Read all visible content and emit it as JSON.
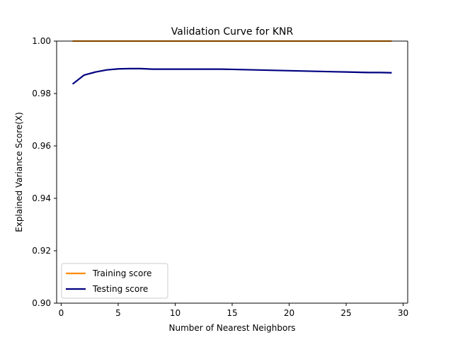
{
  "chart_data": {
    "type": "line",
    "title": "Validation Curve for KNR",
    "xlabel": "Number of Nearest Neighbors",
    "ylabel": "Explained Variance Score(X)",
    "xlim": [
      -0.4,
      30.4
    ],
    "ylim": [
      0.9,
      1.0
    ],
    "xticks": [
      0,
      5,
      10,
      15,
      20,
      25,
      30
    ],
    "yticks": [
      0.9,
      0.92,
      0.94,
      0.96,
      0.98,
      1.0
    ],
    "xtick_labels": [
      "0",
      "5",
      "10",
      "15",
      "20",
      "25",
      "30"
    ],
    "ytick_labels": [
      "0.90",
      "0.92",
      "0.94",
      "0.96",
      "0.98",
      "1.00"
    ],
    "grid": false,
    "legend_position": "lower-left",
    "x": [
      1,
      2,
      3,
      4,
      5,
      6,
      7,
      8,
      9,
      10,
      11,
      12,
      13,
      14,
      15,
      16,
      17,
      18,
      19,
      20,
      21,
      22,
      23,
      24,
      25,
      26,
      27,
      28,
      29
    ],
    "series": [
      {
        "name": "Training score",
        "color": "#ff8c00",
        "values": [
          1.0,
          1.0,
          1.0,
          1.0,
          1.0,
          1.0,
          1.0,
          1.0,
          1.0,
          1.0,
          1.0,
          1.0,
          1.0,
          1.0,
          1.0,
          1.0,
          1.0,
          1.0,
          1.0,
          1.0,
          1.0,
          1.0,
          1.0,
          1.0,
          1.0,
          1.0,
          1.0,
          1.0,
          1.0
        ]
      },
      {
        "name": "Testing score",
        "color": "#000080",
        "values": [
          0.9836,
          0.987,
          0.9882,
          0.989,
          0.9894,
          0.9895,
          0.9895,
          0.9893,
          0.9893,
          0.9893,
          0.9893,
          0.9893,
          0.9893,
          0.9893,
          0.9892,
          0.9891,
          0.989,
          0.9889,
          0.9888,
          0.9887,
          0.9886,
          0.9885,
          0.9884,
          0.9883,
          0.9882,
          0.9881,
          0.988,
          0.988,
          0.9879
        ]
      }
    ]
  }
}
